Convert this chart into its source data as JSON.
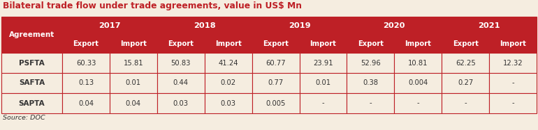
{
  "title": "Bilateral trade flow under trade agreements, value in US$ Mn",
  "source": "Source: DOC",
  "years": [
    "2017",
    "2018",
    "2019",
    "2020",
    "2021"
  ],
  "col_headers": [
    "Export",
    "Import",
    "Export",
    "Import",
    "Export",
    "Import",
    "Export",
    "Import",
    "Export",
    "Import"
  ],
  "row_labels_data": [
    "PSFTA",
    "SAFTA",
    "SAPTA"
  ],
  "table_data": [
    [
      "60.33",
      "15.81",
      "50.83",
      "41.24",
      "60.77",
      "23.91",
      "52.96",
      "10.81",
      "62.25",
      "12.32"
    ],
    [
      "0.13",
      "0.01",
      "0.44",
      "0.02",
      "0.77",
      "0.01",
      "0.38",
      "0.004",
      "0.27",
      "-"
    ],
    [
      "0.04",
      "0.04",
      "0.03",
      "0.03",
      "0.005",
      "-",
      "-",
      "-",
      "-",
      "-"
    ]
  ],
  "header_bg": "#be2026",
  "header_text": "#ffffff",
  "cell_bg": "#f5ede0",
  "border_color": "#be2026",
  "title_color": "#be2026",
  "source_color": "#333333",
  "bg_color": "#f5ede0",
  "title_fontsize": 8.8,
  "year_fontsize": 8.2,
  "subheader_fontsize": 7.2,
  "cell_fontsize": 7.2,
  "label_fontsize": 7.5,
  "source_fontsize": 6.8
}
